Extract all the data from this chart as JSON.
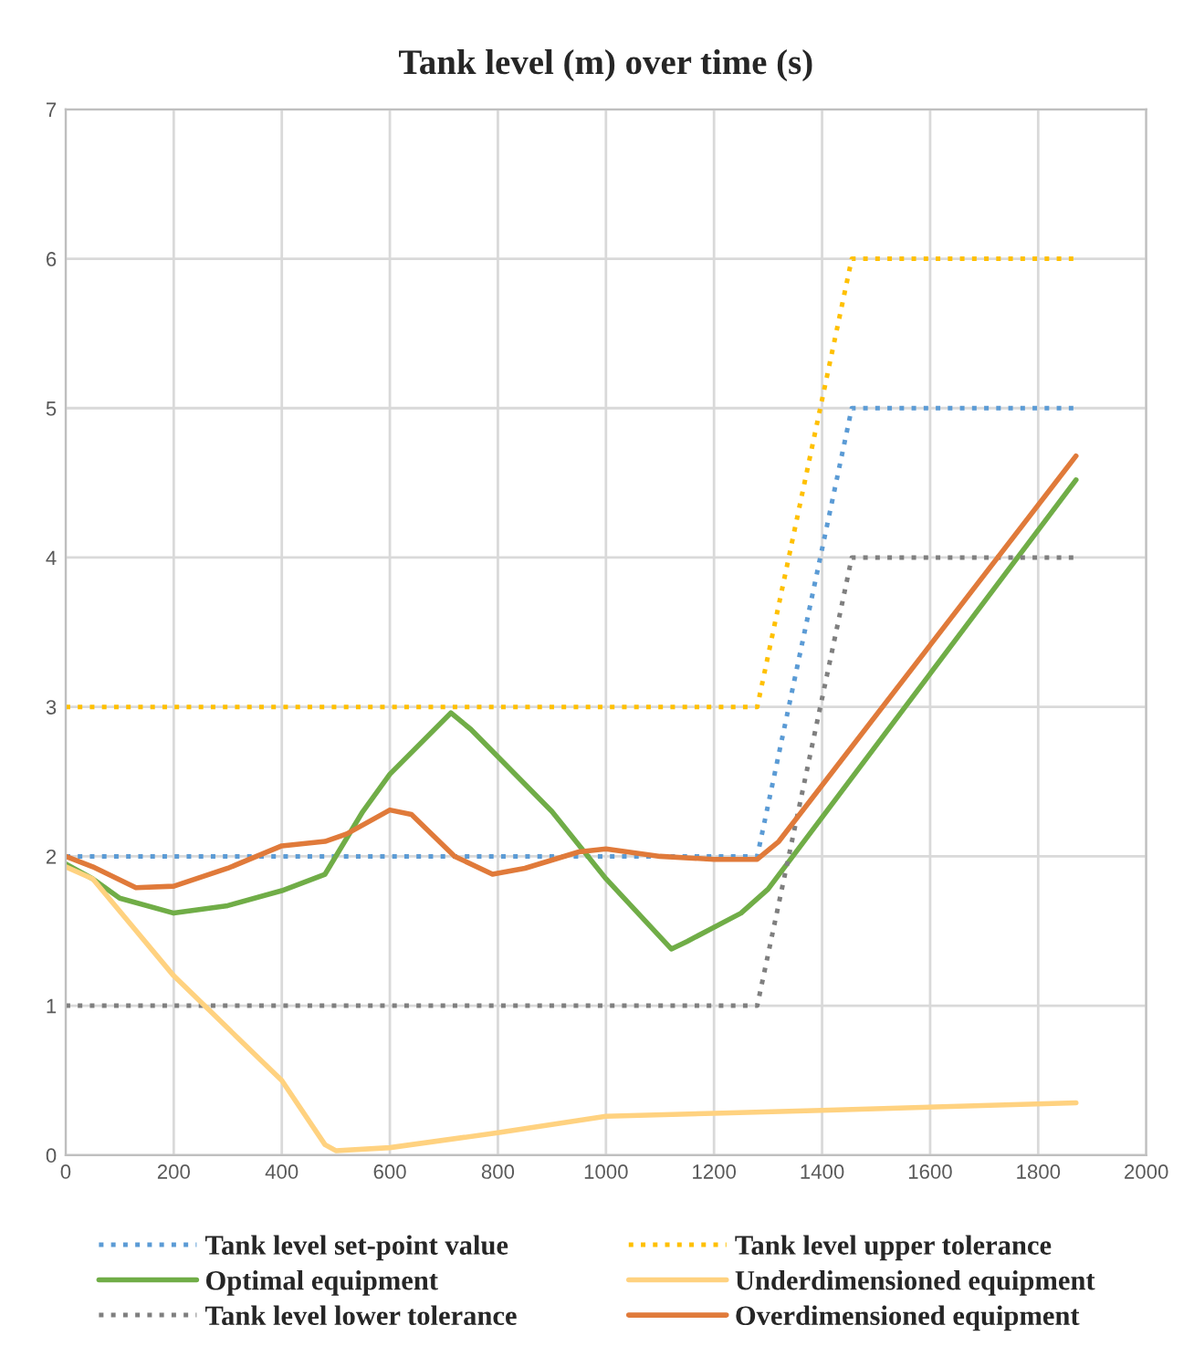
{
  "chart_data": {
    "type": "line",
    "title": "Tank level (m) over time (s)",
    "xlim": [
      0,
      2000
    ],
    "xticks": [
      0,
      200,
      400,
      600,
      800,
      1000,
      1200,
      1400,
      1600,
      1800,
      2000
    ],
    "ylim": [
      0,
      7
    ],
    "yticks": [
      0,
      1,
      2,
      3,
      4,
      5,
      6,
      7
    ],
    "grid": true,
    "legend": "bottom",
    "marker": "none",
    "series": [
      {
        "name": "Tank level set-point value",
        "color": "#5b9bd5",
        "line_style": "dotted",
        "x": [
          0,
          1280,
          1455,
          1870
        ],
        "values": [
          2,
          2,
          5,
          5
        ]
      },
      {
        "name": "Optimal equipment",
        "color": "#70ad47",
        "line_style": "solid",
        "x": [
          0,
          50,
          100,
          200,
          300,
          400,
          480,
          550,
          600,
          713,
          750,
          900,
          1000,
          1121,
          1150,
          1250,
          1300,
          1870
        ],
        "values": [
          1.95,
          1.85,
          1.72,
          1.62,
          1.67,
          1.77,
          1.88,
          2.3,
          2.55,
          2.96,
          2.85,
          2.3,
          1.85,
          1.38,
          1.43,
          1.62,
          1.78,
          4.52
        ]
      },
      {
        "name": "Tank level lower tolerance",
        "color": "#7f7f7f",
        "line_style": "dotted",
        "x": [
          0,
          1280,
          1455,
          1870
        ],
        "values": [
          1,
          1,
          4,
          4
        ]
      },
      {
        "name": "Tank level upper tolerance",
        "color": "#ffc000",
        "line_style": "dotted",
        "x": [
          0,
          1280,
          1455,
          1870
        ],
        "values": [
          3,
          3,
          6,
          6
        ]
      },
      {
        "name": "Underdimensioned equipment",
        "color": "#ffd280",
        "line_style": "solid",
        "x": [
          0,
          50,
          200,
          400,
          480,
          500,
          600,
          800,
          1000,
          1200,
          1400,
          1870
        ],
        "values": [
          1.93,
          1.85,
          1.2,
          0.5,
          0.07,
          0.03,
          0.05,
          0.15,
          0.26,
          0.28,
          0.3,
          0.35
        ]
      },
      {
        "name": "Overdimensioned equipment",
        "color": "#e07a3a",
        "line_style": "solid",
        "x": [
          0,
          50,
          130,
          200,
          300,
          400,
          480,
          520,
          600,
          640,
          720,
          790,
          850,
          950,
          1000,
          1100,
          1200,
          1280,
          1320,
          1870
        ],
        "values": [
          2.0,
          1.93,
          1.79,
          1.8,
          1.92,
          2.07,
          2.1,
          2.15,
          2.31,
          2.28,
          2.0,
          1.88,
          1.92,
          2.03,
          2.05,
          2.0,
          1.98,
          1.98,
          2.1,
          4.68
        ]
      }
    ]
  }
}
